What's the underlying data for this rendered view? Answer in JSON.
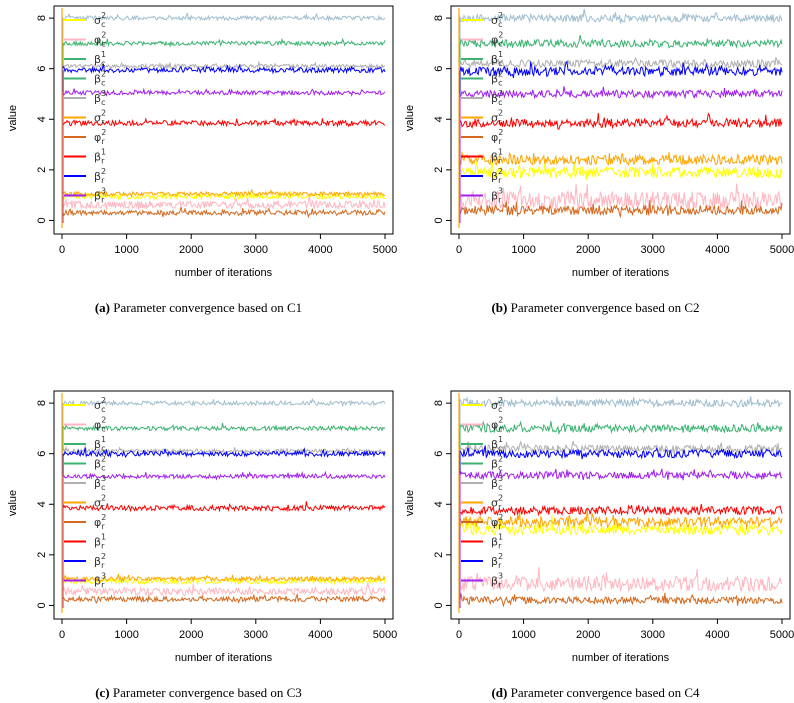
{
  "figure": {
    "captions": [
      {
        "label": "(a)",
        "text": "Parameter convergence based on C1"
      },
      {
        "label": "(b)",
        "text": "Parameter convergence based on C2"
      },
      {
        "label": "(c)",
        "text": "Parameter convergence based on C3"
      },
      {
        "label": "(d)",
        "text": "Parameter convergence based on C4"
      }
    ]
  },
  "chart_data": [
    {
      "type": "line",
      "id": "C1",
      "xlabel": "number of iterations",
      "ylabel": "value",
      "xlim": [
        0,
        5000
      ],
      "ylim": [
        -0.3,
        8.4
      ],
      "xticks": [
        0,
        1000,
        2000,
        3000,
        4000,
        5000
      ],
      "yticks": [
        0,
        2,
        4,
        6,
        8
      ],
      "legend": {
        "position": "top-left",
        "entries": [
          {
            "base": "σ",
            "sub": "c",
            "sup": "2",
            "color": "#FFFF00"
          },
          {
            "base": "φ",
            "sub": "c",
            "sup": "2",
            "color": "#FFB6C1"
          },
          {
            "base": "β",
            "sub": "c",
            "sup": "1",
            "color": "#3CB371"
          },
          {
            "base": "β",
            "sub": "c",
            "sup": "2",
            "color": "#3CB371"
          },
          {
            "base": "β",
            "sub": "c",
            "sup": "3",
            "color": "#B0B0B0"
          },
          {
            "base": "σ",
            "sub": "r",
            "sup": "2",
            "color": "#FFA500"
          },
          {
            "base": "φ",
            "sub": "r",
            "sup": "2",
            "color": "#D2691E"
          },
          {
            "base": "β",
            "sub": "r",
            "sup": "1",
            "color": "#FF0000"
          },
          {
            "base": "β",
            "sub": "r",
            "sup": "2",
            "color": "#0000FF"
          },
          {
            "base": "β",
            "sub": "r",
            "sup": "3",
            "color": "#A020F0"
          }
        ]
      },
      "series": [
        {
          "name": "σc²",
          "color": "#FFFF00",
          "level": 0.95,
          "noise": 0.1
        },
        {
          "name": "φc²",
          "color": "#FFB6C1",
          "level": 0.62,
          "noise": 0.15
        },
        {
          "name": "βc¹",
          "color": "#A0BECE",
          "level": 8.0,
          "noise": 0.08
        },
        {
          "name": "βc²",
          "color": "#3CB371",
          "level": 7.0,
          "noise": 0.08
        },
        {
          "name": "βc³",
          "color": "#B0B0B0",
          "level": 6.1,
          "noise": 0.08
        },
        {
          "name": "σr²",
          "color": "#FFA500",
          "level": 1.05,
          "noise": 0.08
        },
        {
          "name": "φr²",
          "color": "#D2691E",
          "level": 0.3,
          "noise": 0.1
        },
        {
          "name": "βr¹",
          "color": "#FF0000",
          "level": 3.85,
          "noise": 0.1
        },
        {
          "name": "βr²",
          "color": "#0000FF",
          "level": 5.95,
          "noise": 0.1
        },
        {
          "name": "βr³",
          "color": "#A020F0",
          "level": 5.05,
          "noise": 0.08
        }
      ]
    },
    {
      "type": "line",
      "id": "C2",
      "xlabel": "number of iterations",
      "ylabel": "value",
      "xlim": [
        0,
        5000
      ],
      "ylim": [
        -0.3,
        8.4
      ],
      "xticks": [
        0,
        1000,
        2000,
        3000,
        4000,
        5000
      ],
      "yticks": [
        0,
        2,
        4,
        6,
        8
      ],
      "legend": {
        "position": "top-left",
        "entries": [
          {
            "base": "σ",
            "sub": "c",
            "sup": "2",
            "color": "#FFFF00"
          },
          {
            "base": "φ",
            "sub": "c",
            "sup": "2",
            "color": "#FFB6C1"
          },
          {
            "base": "β",
            "sub": "c",
            "sup": "1",
            "color": "#3CB371"
          },
          {
            "base": "β",
            "sub": "c",
            "sup": "2",
            "color": "#3CB371"
          },
          {
            "base": "β",
            "sub": "c",
            "sup": "3",
            "color": "#B0B0B0"
          },
          {
            "base": "σ",
            "sub": "r",
            "sup": "2",
            "color": "#FFA500"
          },
          {
            "base": "φ",
            "sub": "r",
            "sup": "2",
            "color": "#D2691E"
          },
          {
            "base": "β",
            "sub": "r",
            "sup": "1",
            "color": "#FF0000"
          },
          {
            "base": "β",
            "sub": "r",
            "sup": "2",
            "color": "#0000FF"
          },
          {
            "base": "β",
            "sub": "r",
            "sup": "3",
            "color": "#A020F0"
          }
        ]
      },
      "series": [
        {
          "name": "σc²",
          "color": "#FFFF00",
          "level": 1.9,
          "noise": 0.22
        },
        {
          "name": "φc²",
          "color": "#FFB6C1",
          "level": 0.8,
          "noise": 0.35
        },
        {
          "name": "βc¹",
          "color": "#A0BECE",
          "level": 8.0,
          "noise": 0.15
        },
        {
          "name": "βc²",
          "color": "#3CB371",
          "level": 7.0,
          "noise": 0.15
        },
        {
          "name": "βc³",
          "color": "#B0B0B0",
          "level": 6.2,
          "noise": 0.15
        },
        {
          "name": "σr²",
          "color": "#FFA500",
          "level": 2.4,
          "noise": 0.2
        },
        {
          "name": "φr²",
          "color": "#D2691E",
          "level": 0.4,
          "noise": 0.2
        },
        {
          "name": "βr¹",
          "color": "#FF0000",
          "level": 3.85,
          "noise": 0.18
        },
        {
          "name": "βr²",
          "color": "#0000FF",
          "level": 5.9,
          "noise": 0.18
        },
        {
          "name": "βr³",
          "color": "#A020F0",
          "level": 5.0,
          "noise": 0.15
        }
      ]
    },
    {
      "type": "line",
      "id": "C3",
      "xlabel": "number of iterations",
      "ylabel": "value",
      "xlim": [
        0,
        5000
      ],
      "ylim": [
        -0.3,
        8.4
      ],
      "xticks": [
        0,
        1000,
        2000,
        3000,
        4000,
        5000
      ],
      "yticks": [
        0,
        2,
        4,
        6,
        8
      ],
      "legend": {
        "position": "top-left",
        "entries": [
          {
            "base": "σ",
            "sub": "c",
            "sup": "2",
            "color": "#FFFF00"
          },
          {
            "base": "φ",
            "sub": "c",
            "sup": "2",
            "color": "#FFB6C1"
          },
          {
            "base": "β",
            "sub": "c",
            "sup": "1",
            "color": "#3CB371"
          },
          {
            "base": "β",
            "sub": "c",
            "sup": "2",
            "color": "#3CB371"
          },
          {
            "base": "β",
            "sub": "c",
            "sup": "3",
            "color": "#B0B0B0"
          },
          {
            "base": "σ",
            "sub": "r",
            "sup": "2",
            "color": "#FFA500"
          },
          {
            "base": "φ",
            "sub": "r",
            "sup": "2",
            "color": "#D2691E"
          },
          {
            "base": "β",
            "sub": "r",
            "sup": "1",
            "color": "#FF0000"
          },
          {
            "base": "β",
            "sub": "r",
            "sup": "2",
            "color": "#0000FF"
          },
          {
            "base": "β",
            "sub": "r",
            "sup": "3",
            "color": "#A020F0"
          }
        ]
      },
      "series": [
        {
          "name": "σc²",
          "color": "#FFFF00",
          "level": 0.95,
          "noise": 0.1
        },
        {
          "name": "φc²",
          "color": "#FFB6C1",
          "level": 0.55,
          "noise": 0.14
        },
        {
          "name": "βc¹",
          "color": "#A0BECE",
          "level": 8.0,
          "noise": 0.08
        },
        {
          "name": "βc²",
          "color": "#3CB371",
          "level": 7.0,
          "noise": 0.08
        },
        {
          "name": "βc³",
          "color": "#B0B0B0",
          "level": 6.1,
          "noise": 0.08
        },
        {
          "name": "σr²",
          "color": "#FFA500",
          "level": 1.05,
          "noise": 0.08
        },
        {
          "name": "φr²",
          "color": "#D2691E",
          "level": 0.25,
          "noise": 0.1
        },
        {
          "name": "βr¹",
          "color": "#FF0000",
          "level": 3.85,
          "noise": 0.1
        },
        {
          "name": "βr²",
          "color": "#0000FF",
          "level": 6.0,
          "noise": 0.1
        },
        {
          "name": "βr³",
          "color": "#A020F0",
          "level": 5.1,
          "noise": 0.08
        }
      ]
    },
    {
      "type": "line",
      "id": "C4",
      "xlabel": "number of iterations",
      "ylabel": "value",
      "xlim": [
        0,
        5000
      ],
      "ylim": [
        -0.3,
        8.4
      ],
      "xticks": [
        0,
        1000,
        2000,
        3000,
        4000,
        5000
      ],
      "yticks": [
        0,
        2,
        4,
        6,
        8
      ],
      "legend": {
        "position": "top-left",
        "entries": [
          {
            "base": "σ",
            "sub": "c",
            "sup": "2",
            "color": "#FFFF00"
          },
          {
            "base": "φ",
            "sub": "c",
            "sup": "2",
            "color": "#FFB6C1"
          },
          {
            "base": "β",
            "sub": "c",
            "sup": "1",
            "color": "#3CB371"
          },
          {
            "base": "β",
            "sub": "c",
            "sup": "2",
            "color": "#3CB371"
          },
          {
            "base": "β",
            "sub": "c",
            "sup": "3",
            "color": "#B0B0B0"
          },
          {
            "base": "σ",
            "sub": "r",
            "sup": "2",
            "color": "#FFA500"
          },
          {
            "base": "φ",
            "sub": "r",
            "sup": "2",
            "color": "#D2691E"
          },
          {
            "base": "β",
            "sub": "r",
            "sup": "1",
            "color": "#FF0000"
          },
          {
            "base": "β",
            "sub": "r",
            "sup": "2",
            "color": "#0000FF"
          },
          {
            "base": "β",
            "sub": "r",
            "sup": "3",
            "color": "#A020F0"
          }
        ]
      },
      "series": [
        {
          "name": "σc²",
          "color": "#FFFF00",
          "level": 3.0,
          "noise": 0.22
        },
        {
          "name": "φc²",
          "color": "#FFB6C1",
          "level": 0.85,
          "noise": 0.3
        },
        {
          "name": "βc¹",
          "color": "#A0BECE",
          "level": 8.0,
          "noise": 0.15
        },
        {
          "name": "βc²",
          "color": "#3CB371",
          "level": 7.0,
          "noise": 0.15
        },
        {
          "name": "βc³",
          "color": "#B0B0B0",
          "level": 6.2,
          "noise": 0.15
        },
        {
          "name": "σr²",
          "color": "#FFA500",
          "level": 3.3,
          "noise": 0.2
        },
        {
          "name": "φr²",
          "color": "#D2691E",
          "level": 0.2,
          "noise": 0.14
        },
        {
          "name": "βr¹",
          "color": "#FF0000",
          "level": 3.75,
          "noise": 0.16
        },
        {
          "name": "βr²",
          "color": "#0000FF",
          "level": 6.0,
          "noise": 0.16
        },
        {
          "name": "βr³",
          "color": "#A020F0",
          "level": 5.15,
          "noise": 0.14
        }
      ]
    }
  ]
}
